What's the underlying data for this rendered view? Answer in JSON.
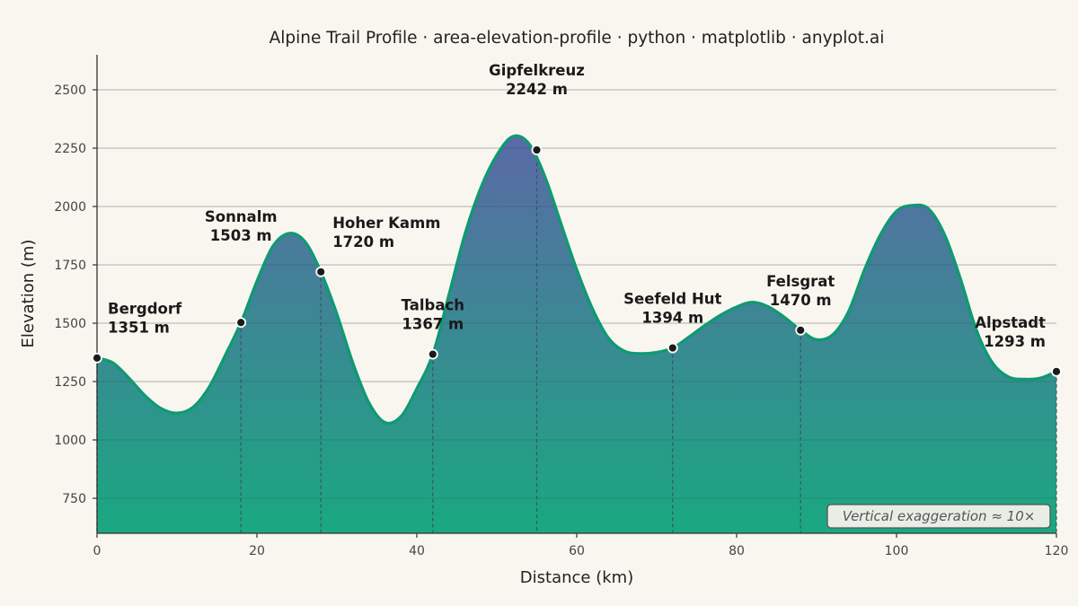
{
  "chart_data": {
    "type": "area",
    "title": "Alpine Trail Profile · area-elevation-profile · python · matplotlib · anyplot.ai",
    "xlabel": "Distance (km)",
    "ylabel": "Elevation (m)",
    "xlim": [
      0,
      120
    ],
    "ylim": [
      600,
      2650
    ],
    "xticks": [
      0,
      20,
      40,
      60,
      80,
      100,
      120
    ],
    "yticks": [
      750,
      1000,
      1250,
      1500,
      1750,
      2000,
      2250,
      2500
    ],
    "grid": "horizontal",
    "profile": {
      "x": [
        0,
        2,
        4,
        6,
        8,
        10,
        12,
        14,
        16,
        18,
        20,
        22,
        24,
        26,
        28,
        30,
        32,
        34,
        36,
        38,
        40,
        42,
        44,
        46,
        48,
        50,
        52,
        54,
        56,
        58,
        60,
        62,
        64,
        66,
        68,
        70,
        72,
        74,
        76,
        78,
        80,
        82,
        84,
        86,
        88,
        90,
        92,
        94,
        96,
        98,
        100,
        102,
        104,
        106,
        108,
        110,
        112,
        114,
        116,
        118,
        120
      ],
      "y": [
        1351,
        1330,
        1265,
        1190,
        1135,
        1115,
        1140,
        1225,
        1360,
        1503,
        1680,
        1830,
        1885,
        1850,
        1720,
        1540,
        1330,
        1160,
        1075,
        1100,
        1220,
        1367,
        1620,
        1880,
        2080,
        2220,
        2300,
        2270,
        2130,
        1930,
        1730,
        1560,
        1435,
        1380,
        1370,
        1375,
        1394,
        1440,
        1490,
        1535,
        1570,
        1590,
        1570,
        1525,
        1470,
        1430,
        1450,
        1550,
        1730,
        1880,
        1980,
        2005,
        1990,
        1880,
        1690,
        1470,
        1330,
        1270,
        1260,
        1265,
        1293
      ]
    },
    "waypoints": [
      {
        "name": "Bergdorf",
        "x": 0,
        "elevation": 1351,
        "label": "1351 m"
      },
      {
        "name": "Sonnalm",
        "x": 18,
        "elevation": 1503,
        "label": "1503 m"
      },
      {
        "name": "Hoher Kamm",
        "x": 28,
        "elevation": 1720,
        "label": "1720 m"
      },
      {
        "name": "Talbach",
        "x": 42,
        "elevation": 1367,
        "label": "1367 m"
      },
      {
        "name": "Gipfelkreuz",
        "x": 55,
        "elevation": 2242,
        "label": "2242 m"
      },
      {
        "name": "Seefeld Hut",
        "x": 72,
        "elevation": 1394,
        "label": "1394 m"
      },
      {
        "name": "Felsgrat",
        "x": 88,
        "elevation": 1470,
        "label": "1470 m"
      },
      {
        "name": "Alpstadt",
        "x": 120,
        "elevation": 1293,
        "label": "1293 m"
      }
    ],
    "annotation": "Vertical exaggeration ≈ 10×",
    "annotation_position": "bottom-right",
    "colors": {
      "line": "#0e9a72",
      "fill_top": "#5a6aa6",
      "fill_bottom": "#1aa880",
      "background": "#f9f6f0",
      "grid": "#d6d3cd",
      "marker": "#1a1a1a"
    }
  }
}
